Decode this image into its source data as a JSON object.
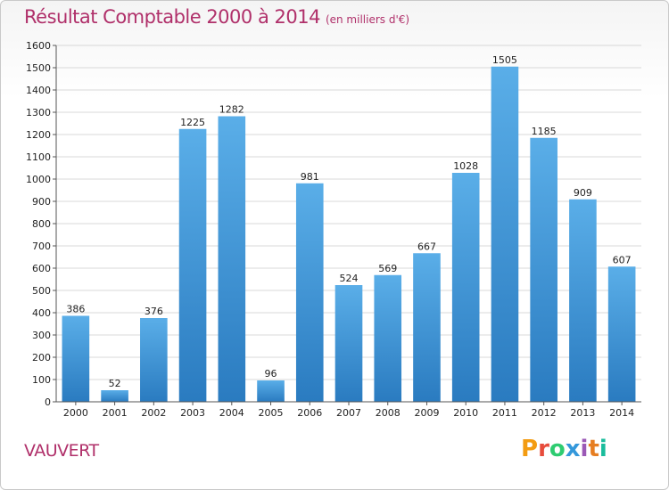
{
  "header": {
    "title": "Résultat Comptable 2000 à 2014",
    "subtitle": "(en milliers d'€)"
  },
  "footer": {
    "commune": "VAUVERT",
    "logo_text": "Proxiti",
    "logo_colors": [
      "#f39c12",
      "#e74c3c",
      "#2ecc71",
      "#3498db",
      "#9b59b6",
      "#e67e22",
      "#1abc9c"
    ]
  },
  "chart_data": {
    "type": "bar",
    "title": "Résultat Comptable 2000 à 2014",
    "subtitle": "(en milliers d'€)",
    "xlabel": "",
    "ylabel": "",
    "ylim": [
      0,
      1600
    ],
    "yticks": [
      0,
      100,
      200,
      300,
      400,
      500,
      600,
      700,
      800,
      900,
      1000,
      1100,
      1200,
      1300,
      1400,
      1500,
      1600
    ],
    "grid": true,
    "categories": [
      "2000",
      "2001",
      "2002",
      "2003",
      "2004",
      "2005",
      "2006",
      "2007",
      "2008",
      "2009",
      "2010",
      "2011",
      "2012",
      "2013",
      "2014"
    ],
    "values": [
      386,
      52,
      376,
      1225,
      1282,
      96,
      981,
      524,
      569,
      667,
      1028,
      1505,
      1185,
      909,
      607
    ],
    "colors": {
      "bar_top": "#5aaee8",
      "bar_bottom": "#2a7bc0",
      "grid": "#d8d8d8",
      "axis": "#555555"
    }
  }
}
